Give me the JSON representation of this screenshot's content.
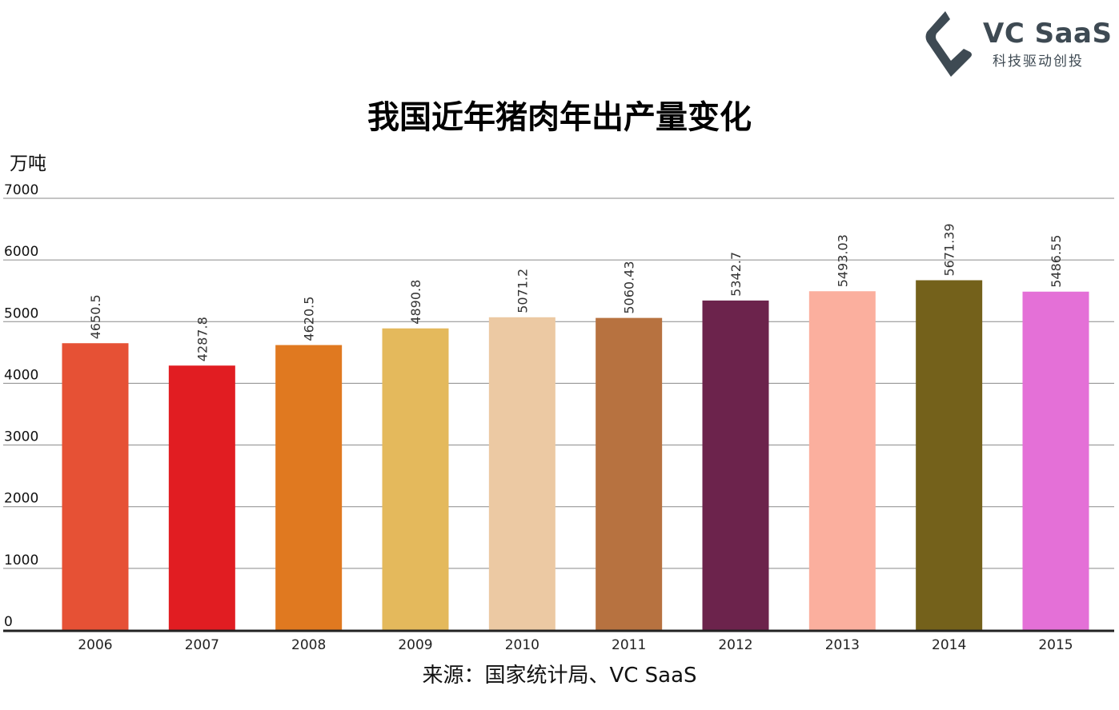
{
  "logo": {
    "name": "VC SaaS",
    "tagline": "科技驱动创投",
    "mark_color": "#3e4a53"
  },
  "unit_label": "万吨",
  "source": "来源：国家统计局、VC SaaS",
  "chart_data": {
    "type": "bar",
    "title": "我国近年猪肉年出产量变化",
    "xlabel": "",
    "ylabel": "万吨",
    "categories": [
      "2006",
      "2007",
      "2008",
      "2009",
      "2010",
      "2011",
      "2012",
      "2013",
      "2014",
      "2015"
    ],
    "values": [
      4650.5,
      4287.8,
      4620.5,
      4890.8,
      5071.2,
      5060.43,
      5342.7,
      5493.03,
      5671.39,
      5486.55
    ],
    "value_labels": [
      "4650.5",
      "4287.8",
      "4620.5",
      "4890.8",
      "5071.2",
      "5060.43",
      "5342.7",
      "5493.03",
      "5671.39",
      "5486.55"
    ],
    "colors": [
      "#e65135",
      "#e11d22",
      "#e07920",
      "#e4b95c",
      "#ecc9a3",
      "#b77240",
      "#6c234c",
      "#fbaf9e",
      "#74611b",
      "#e470d7"
    ],
    "ylim": [
      0,
      7000
    ],
    "yticks": [
      "0",
      "1000",
      "2000",
      "3000",
      "4000",
      "5000",
      "6000",
      "7000"
    ],
    "grid": true,
    "legend": "none"
  }
}
